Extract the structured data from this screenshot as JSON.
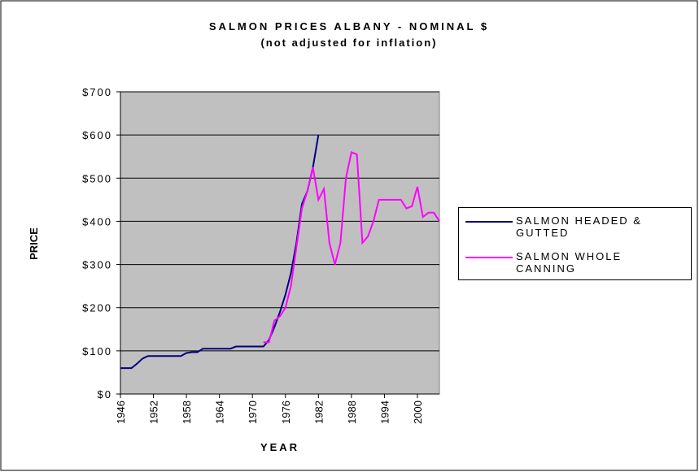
{
  "chart_data": {
    "type": "line",
    "title": "SALMON PRICES ALBANY - NOMINAL $",
    "subtitle": "(not adjusted for inflation)",
    "x_label": "YEAR",
    "y_label": "PRICE",
    "x": [
      1946,
      1947,
      1948,
      1949,
      1950,
      1951,
      1952,
      1953,
      1954,
      1955,
      1956,
      1957,
      1958,
      1959,
      1960,
      1961,
      1962,
      1963,
      1964,
      1965,
      1966,
      1967,
      1968,
      1969,
      1970,
      1971,
      1972,
      1973,
      1974,
      1975,
      1976,
      1977,
      1978,
      1979,
      1980,
      1981,
      1982,
      1983,
      1984,
      1985,
      1986,
      1987,
      1988,
      1989,
      1990,
      1991,
      1992,
      1993,
      1994,
      1995,
      1996,
      1997,
      1998,
      1999,
      2000,
      2001,
      2002,
      2003,
      2004
    ],
    "series": [
      {
        "name": "SALMON HEADED & GUTTED",
        "color": "#000080",
        "values": [
          60,
          60,
          60,
          70,
          82,
          88,
          88,
          88,
          88,
          88,
          88,
          88,
          95,
          97,
          97,
          105,
          105,
          105,
          105,
          105,
          105,
          110,
          110,
          110,
          110,
          110,
          110,
          125,
          155,
          190,
          230,
          280,
          350,
          440,
          470,
          525,
          600,
          null,
          null,
          null,
          null,
          null,
          null,
          null,
          null,
          null,
          null,
          null,
          null,
          null,
          null,
          null,
          null,
          null,
          null,
          null,
          null,
          null,
          null
        ]
      },
      {
        "name": "SALMON WHOLE CANNING",
        "color": "#ff00ff",
        "values": [
          null,
          null,
          null,
          null,
          null,
          null,
          null,
          null,
          null,
          null,
          null,
          null,
          null,
          null,
          null,
          null,
          null,
          null,
          null,
          null,
          null,
          null,
          null,
          null,
          null,
          null,
          120,
          120,
          170,
          180,
          200,
          250,
          340,
          430,
          470,
          525,
          450,
          475,
          350,
          300,
          350,
          500,
          560,
          555,
          350,
          365,
          400,
          450,
          450,
          450,
          450,
          450,
          430,
          435,
          480,
          410,
          420,
          420,
          400
        ]
      }
    ],
    "xlim": [
      1946,
      2004
    ],
    "xticks": [
      1946,
      1952,
      1958,
      1964,
      1970,
      1976,
      1982,
      1988,
      1994,
      2000
    ],
    "ylim": [
      0,
      700
    ],
    "yticks": [
      {
        "value": 0,
        "label": "$0"
      },
      {
        "value": 100,
        "label": "$100"
      },
      {
        "value": 200,
        "label": "$200"
      },
      {
        "value": 300,
        "label": "$300"
      },
      {
        "value": 400,
        "label": "$400"
      },
      {
        "value": 500,
        "label": "$500"
      },
      {
        "value": 600,
        "label": "$600"
      },
      {
        "value": 700,
        "label": "$700"
      }
    ],
    "grid": true,
    "legend": "right",
    "plot_background": "#c0c0c0"
  }
}
